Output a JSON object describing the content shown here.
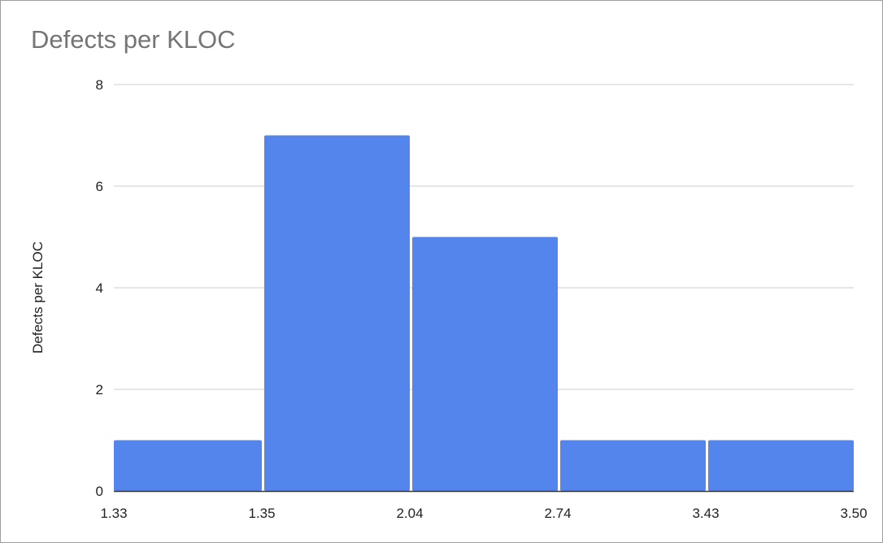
{
  "chart_data": {
    "type": "bar",
    "title": "Defects per KLOC",
    "xlabel": "",
    "ylabel": "Defects per KLOC",
    "bin_edges": [
      "1.33",
      "1.35",
      "2.04",
      "2.74",
      "3.43",
      "3.50"
    ],
    "values": [
      1,
      7,
      5,
      1,
      1
    ],
    "ylim": [
      0,
      8
    ],
    "yticks": [
      0,
      2,
      4,
      6,
      8
    ],
    "grid": true,
    "colors": {
      "bar": "#5385ed",
      "grid": "#cccccc",
      "axis": "#333333",
      "title": "#757575"
    }
  }
}
